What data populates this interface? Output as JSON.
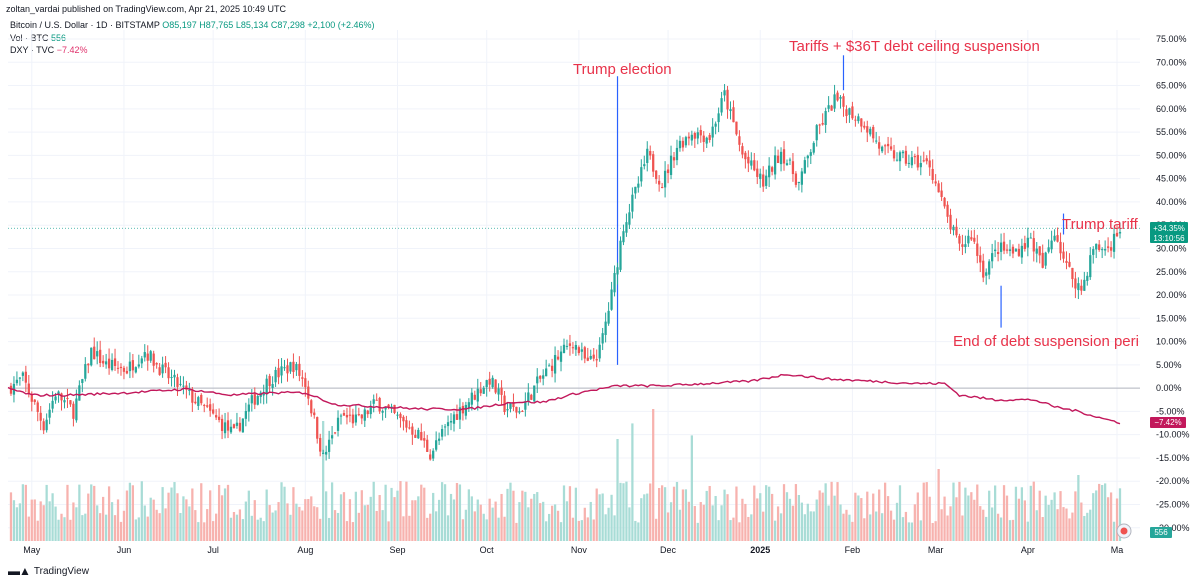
{
  "header": {
    "published": "zoltan_vardai published on TradingView.com, Apr 21, 2025 10:49 UTC",
    "symbol": "Bitcoin / U.S. Dollar · 1D · BITSTAMP",
    "o": "O85,197",
    "h": "H87,765",
    "l": "L85,134",
    "c": "C87,298",
    "change": "+2,100 (+2.46%)",
    "vol_label": "Vol · BTC",
    "vol_value": "556",
    "dxy_label": "DXY · TVC",
    "dxy_value": "−7.42%"
  },
  "footer": {
    "brand": "TradingView"
  },
  "colors": {
    "up": "#26a69a",
    "down": "#ef5350",
    "volume_up": "#a8dcd6",
    "volume_down": "#f7b2ae",
    "dxy": "#c2185b",
    "annotation": "#e8334a",
    "marker": "#2962ff",
    "axis_text": "#131722"
  },
  "chart_data": {
    "type": "candlestick",
    "title": "Bitcoin / U.S. Dollar · 1D · BITSTAMP (percentage scale) with DXY overlay",
    "y_unit": "% change",
    "ylim": [
      -33,
      77
    ],
    "y_ticks": [
      75,
      70,
      65,
      60,
      55,
      50,
      45,
      40,
      35,
      30,
      25,
      20,
      15,
      10,
      5,
      0,
      -5,
      -10,
      -15,
      -20,
      -25,
      -30
    ],
    "y_tick_labels": [
      "75.00%",
      "70.00%",
      "65.00%",
      "60.00%",
      "55.00%",
      "50.00%",
      "45.00%",
      "40.00%",
      "35.00%",
      "30.00%",
      "25.00%",
      "20.00%",
      "15.00%",
      "10.00%",
      "5.00%",
      "0.00%",
      "-5.00%",
      "-10.00%",
      "-15.00%",
      "-20.00%",
      "-25.00%",
      "-30.00%"
    ],
    "x_ticks": [
      {
        "label": "May",
        "day": 8
      },
      {
        "label": "Jun",
        "day": 39
      },
      {
        "label": "Jul",
        "day": 69
      },
      {
        "label": "Aug",
        "day": 100
      },
      {
        "label": "Sep",
        "day": 131
      },
      {
        "label": "Oct",
        "day": 161
      },
      {
        "label": "Nov",
        "day": 192
      },
      {
        "label": "Dec",
        "day": 222
      },
      {
        "label": "2025",
        "day": 253,
        "bold": true
      },
      {
        "label": "Feb",
        "day": 284
      },
      {
        "label": "Mar",
        "day": 312
      },
      {
        "label": "Apr",
        "day": 343
      },
      {
        "label": "Ma",
        "day": 373
      }
    ],
    "day_range": [
      0,
      374
    ],
    "btc_close_keypoints": [
      {
        "day": 0,
        "value": 0
      },
      {
        "day": 5,
        "value": 2
      },
      {
        "day": 12,
        "value": -8
      },
      {
        "day": 16,
        "value": -1
      },
      {
        "day": 22,
        "value": -5
      },
      {
        "day": 28,
        "value": 8
      },
      {
        "day": 33,
        "value": 5
      },
      {
        "day": 40,
        "value": 4
      },
      {
        "day": 46,
        "value": 8
      },
      {
        "day": 53,
        "value": 3
      },
      {
        "day": 60,
        "value": -1
      },
      {
        "day": 67,
        "value": -5
      },
      {
        "day": 76,
        "value": -10
      },
      {
        "day": 82,
        "value": -3
      },
      {
        "day": 88,
        "value": 2
      },
      {
        "day": 96,
        "value": 5
      },
      {
        "day": 100,
        "value": 1
      },
      {
        "day": 106,
        "value": -15
      },
      {
        "day": 112,
        "value": -6
      },
      {
        "day": 118,
        "value": -7
      },
      {
        "day": 124,
        "value": -3
      },
      {
        "day": 132,
        "value": -7
      },
      {
        "day": 138,
        "value": -10
      },
      {
        "day": 142,
        "value": -14
      },
      {
        "day": 150,
        "value": -6
      },
      {
        "day": 156,
        "value": -2
      },
      {
        "day": 162,
        "value": 2
      },
      {
        "day": 167,
        "value": -4
      },
      {
        "day": 172,
        "value": -5
      },
      {
        "day": 178,
        "value": 1
      },
      {
        "day": 184,
        "value": 6
      },
      {
        "day": 190,
        "value": 10
      },
      {
        "day": 195,
        "value": 5
      },
      {
        "day": 199,
        "value": 8
      },
      {
        "day": 203,
        "value": 20
      },
      {
        "day": 207,
        "value": 35
      },
      {
        "day": 211,
        "value": 42
      },
      {
        "day": 215,
        "value": 50
      },
      {
        "day": 220,
        "value": 44
      },
      {
        "day": 225,
        "value": 52
      },
      {
        "day": 230,
        "value": 55
      },
      {
        "day": 236,
        "value": 54
      },
      {
        "day": 241,
        "value": 63
      },
      {
        "day": 247,
        "value": 50
      },
      {
        "day": 254,
        "value": 44
      },
      {
        "day": 260,
        "value": 51
      },
      {
        "day": 266,
        "value": 44
      },
      {
        "day": 272,
        "value": 55
      },
      {
        "day": 278,
        "value": 62
      },
      {
        "day": 282,
        "value": 60
      },
      {
        "day": 288,
        "value": 57
      },
      {
        "day": 294,
        "value": 51
      },
      {
        "day": 302,
        "value": 49
      },
      {
        "day": 310,
        "value": 48
      },
      {
        "day": 315,
        "value": 38
      },
      {
        "day": 320,
        "value": 30
      },
      {
        "day": 324,
        "value": 33
      },
      {
        "day": 328,
        "value": 25
      },
      {
        "day": 333,
        "value": 30
      },
      {
        "day": 338,
        "value": 29
      },
      {
        "day": 344,
        "value": 32
      },
      {
        "day": 348,
        "value": 26
      },
      {
        "day": 352,
        "value": 34
      },
      {
        "day": 356,
        "value": 26
      },
      {
        "day": 361,
        "value": 21
      },
      {
        "day": 365,
        "value": 30
      },
      {
        "day": 370,
        "value": 30
      },
      {
        "day": 374,
        "value": 34.35
      }
    ],
    "dxy_keypoints": [
      {
        "day": 0,
        "value": 0
      },
      {
        "day": 8,
        "value": -1.5
      },
      {
        "day": 20,
        "value": -1.5
      },
      {
        "day": 40,
        "value": -1
      },
      {
        "day": 60,
        "value": -0.2
      },
      {
        "day": 75,
        "value": -1.5
      },
      {
        "day": 90,
        "value": -1
      },
      {
        "day": 100,
        "value": -1
      },
      {
        "day": 110,
        "value": -3.5
      },
      {
        "day": 125,
        "value": -4
      },
      {
        "day": 140,
        "value": -4.5
      },
      {
        "day": 155,
        "value": -4.5
      },
      {
        "day": 170,
        "value": -3
      },
      {
        "day": 180,
        "value": -3
      },
      {
        "day": 192,
        "value": -1
      },
      {
        "day": 205,
        "value": 0.5
      },
      {
        "day": 220,
        "value": 0.5
      },
      {
        "day": 235,
        "value": 1
      },
      {
        "day": 250,
        "value": 1.5
      },
      {
        "day": 262,
        "value": 3
      },
      {
        "day": 275,
        "value": 2
      },
      {
        "day": 290,
        "value": 1.5
      },
      {
        "day": 305,
        "value": 1
      },
      {
        "day": 315,
        "value": 1
      },
      {
        "day": 320,
        "value": -1.5
      },
      {
        "day": 332,
        "value": -2.5
      },
      {
        "day": 345,
        "value": -2.5
      },
      {
        "day": 352,
        "value": -4
      },
      {
        "day": 360,
        "value": -5
      },
      {
        "day": 368,
        "value": -6.5
      },
      {
        "day": 374,
        "value": -7.42
      }
    ],
    "volume_spikes": [
      {
        "day": 106,
        "value": 1.0
      },
      {
        "day": 205,
        "value": 0.85
      },
      {
        "day": 210,
        "value": 0.98
      },
      {
        "day": 217,
        "value": 1.1
      },
      {
        "day": 230,
        "value": 0.88
      },
      {
        "day": 313,
        "value": 0.6
      },
      {
        "day": 360,
        "value": 0.55
      }
    ],
    "last_price_label": "+34.35%",
    "countdown_label": "13:10:56",
    "dxy_last_label": "−7.42%",
    "volume_last_label": "556",
    "annotations": [
      {
        "text": "Trump election",
        "day": 205,
        "value": 67
      },
      {
        "text": "Tariffs + $36T debt ceiling suspension",
        "day": 281,
        "value": 71
      },
      {
        "text": "Trump tariff",
        "day": 355,
        "value": 37.5
      },
      {
        "text": "End of debt suspension peri",
        "day": 334,
        "value": 13
      }
    ]
  }
}
